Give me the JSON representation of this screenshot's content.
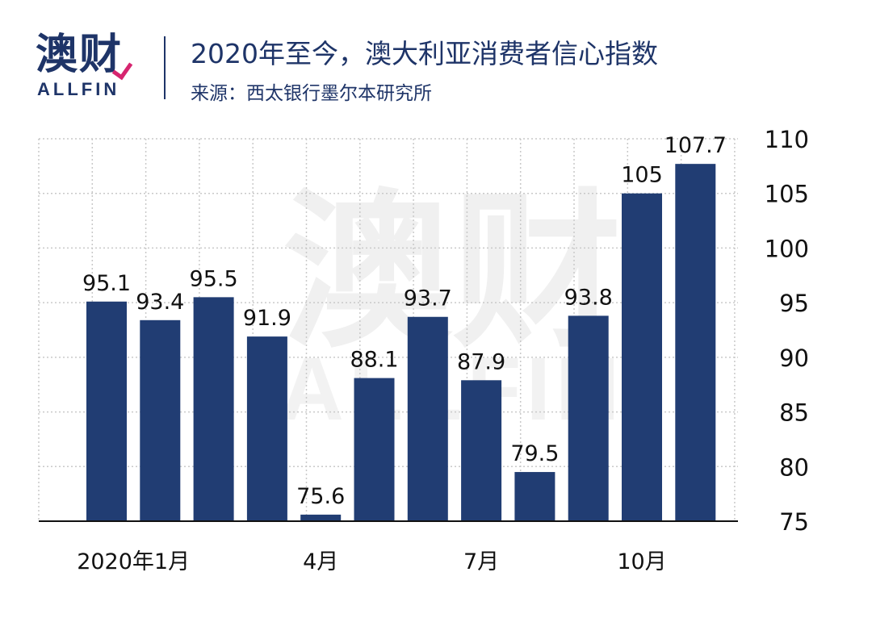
{
  "header": {
    "logo_cn": "澳财",
    "logo_en": "ALLFIN",
    "title": "2020年至今，澳大利亚消费者信心指数",
    "source": "来源：西太银行墨尔本研究所"
  },
  "watermark": {
    "cn": "澳财",
    "en": "ALLFIN"
  },
  "colors": {
    "bar": "#213d73",
    "brand": "#1e3468",
    "accent": "#d6256f",
    "grid": "#c9c9c9"
  },
  "chart_data": {
    "type": "bar",
    "title": "2020年至今，澳大利亚消费者信心指数",
    "categories": [
      "2020-01",
      "2020-02",
      "2020-03",
      "2020-04",
      "2020-05",
      "2020-06",
      "2020-07",
      "2020-08",
      "2020-09",
      "2020-10",
      "2020-11",
      "2020-12"
    ],
    "values": [
      95.1,
      93.4,
      95.5,
      91.9,
      75.6,
      88.1,
      93.7,
      87.9,
      79.5,
      93.8,
      105,
      107.7
    ],
    "data_labels": [
      "95.1",
      "93.4",
      "95.5",
      "91.9",
      "75.6",
      "88.1",
      "93.7",
      "87.9",
      "79.5",
      "93.8",
      "105",
      "107.7"
    ],
    "x_tick_labels": [
      {
        "category_index": 0.5,
        "label": "2020年1月"
      },
      {
        "category_index": 4,
        "label": "4月"
      },
      {
        "category_index": 7,
        "label": "7月"
      },
      {
        "category_index": 10,
        "label": "10月"
      }
    ],
    "y_ticks": [
      75,
      80,
      85,
      90,
      95,
      100,
      105,
      110
    ],
    "y_tick_labels": [
      "75",
      "80",
      "85",
      "90",
      "95",
      "100",
      "105",
      "110"
    ],
    "ylim": [
      75,
      110
    ],
    "y_axis_side": "right",
    "grid": true,
    "legend": "none",
    "xlabel": "",
    "ylabel": ""
  }
}
